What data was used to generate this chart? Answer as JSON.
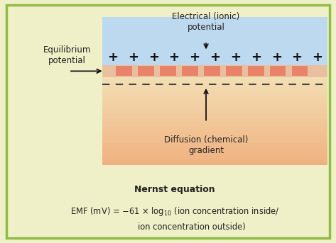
{
  "fig_width": 4.73,
  "fig_height": 3.43,
  "dpi": 100,
  "bg_color": "#f0f0c8",
  "border_color": "#8fbc45",
  "border_lw": 2.5,
  "top_region_color": "#bdd9ef",
  "membrane_color": "#e8836a",
  "membrane_bg_color": "#e8c0a0",
  "dashed_color": "#444444",
  "plus_color": "#111111",
  "text_color": "#222222",
  "arrow_color": "#111111",
  "label_electrical": "Electrical (ionic)\npotential",
  "label_diffusion": "Diffusion (chemical)\ngradient",
  "label_equilibrium": "Equilibrium\npotential",
  "nernst_title": "Nernst equation",
  "nernst_eq_main": "EMF (mV) = –61 × log",
  "nernst_eq_sub": "10",
  "nernst_eq_rest": " (ion concentration inside/",
  "nernst_eq_line2": "ion concentration outside)"
}
